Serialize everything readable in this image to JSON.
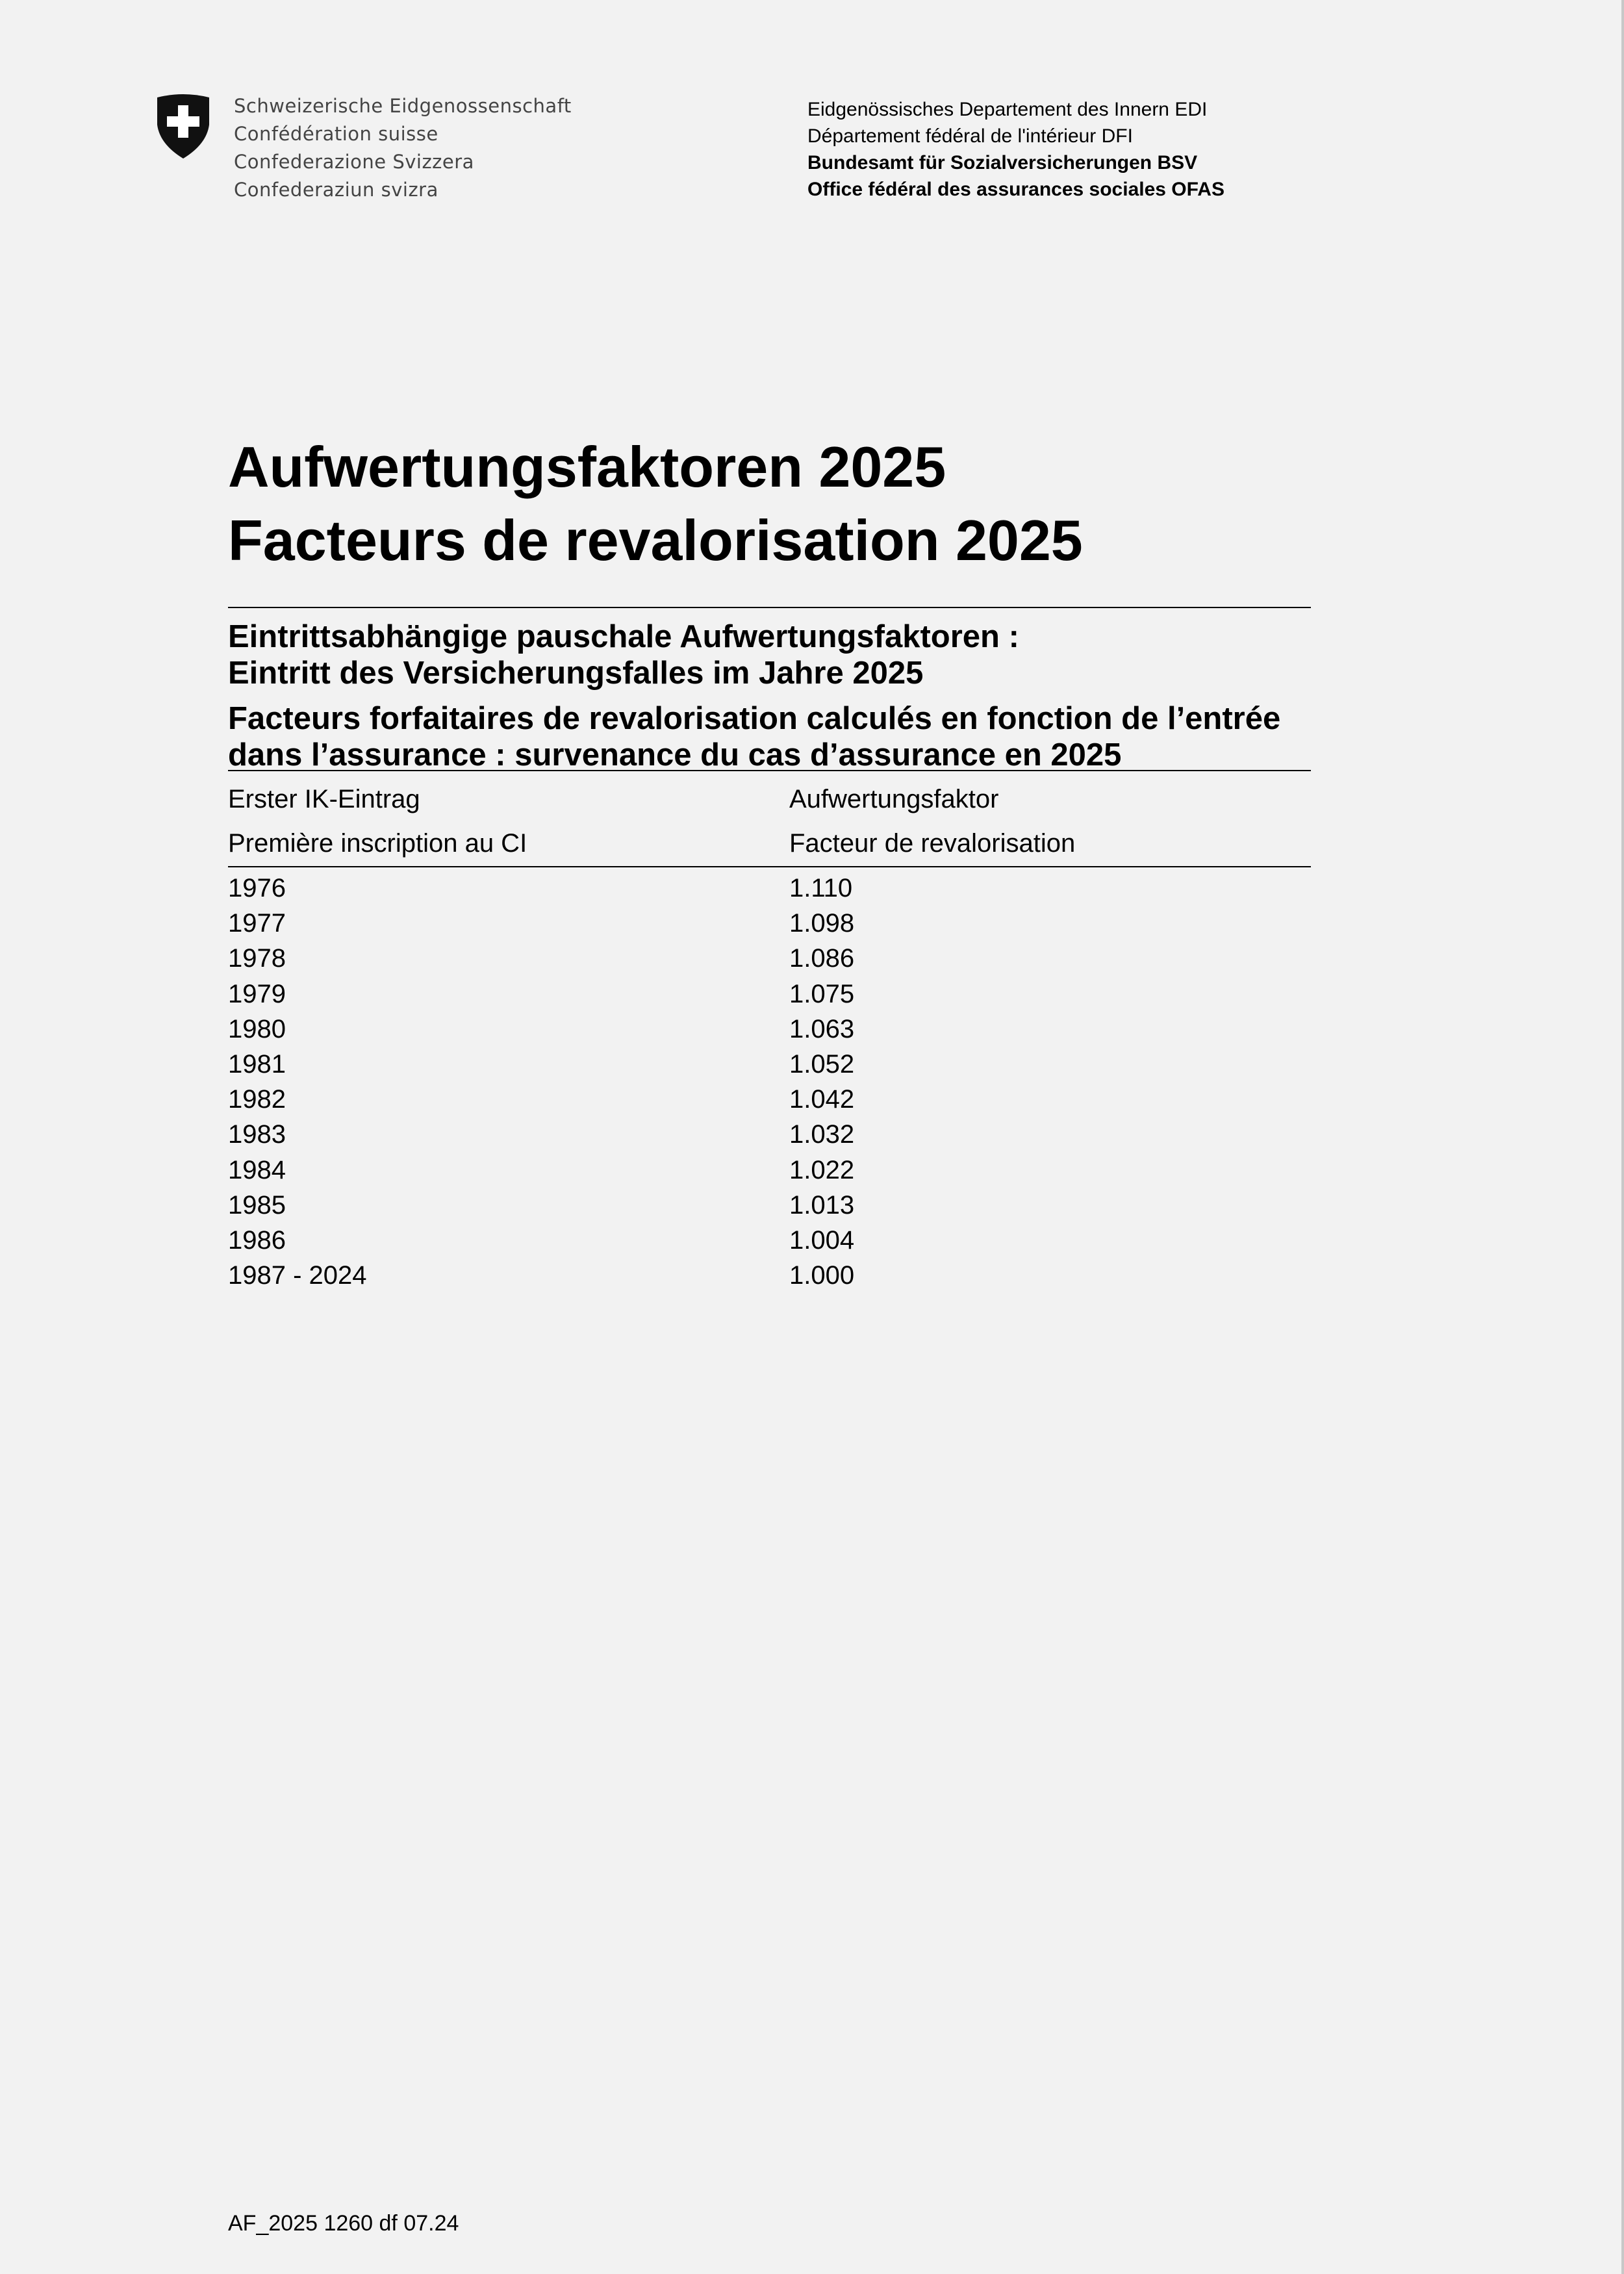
{
  "header": {
    "federation": [
      "Schweizerische Eidgenossenschaft",
      "Confédération suisse",
      "Confederazione Svizzera",
      "Confederaziun svizra"
    ],
    "department": [
      "Eidgenössisches Departement des Innern EDI",
      "Département fédéral de l'intérieur DFI"
    ],
    "office": [
      "Bundesamt für Sozialversicherungen BSV",
      "Office fédéral des assurances sociales OFAS"
    ],
    "logo_icon": "swiss-cross-shield-icon"
  },
  "title": [
    "Aufwertungsfaktoren 2025",
    "Facteurs de revalorisation 2025"
  ],
  "subtitle_de": [
    "Eintrittsabhängige pauschale Aufwertungsfaktoren :",
    "Eintritt des Versicherungsfalles im Jahre 2025"
  ],
  "subtitle_fr": [
    "Facteurs forfaitaires de revalorisation calculés en fonction de l’entrée",
    "dans l’assurance : survenance du cas d’assurance en 2025"
  ],
  "table": {
    "col1": [
      "Erster IK-Eintrag",
      "Première inscription au CI"
    ],
    "col2": [
      "Aufwertungsfaktor",
      "Facteur de revalorisation"
    ],
    "rows": [
      [
        "1976",
        "1.110"
      ],
      [
        "1977",
        "1.098"
      ],
      [
        "1978",
        "1.086"
      ],
      [
        "1979",
        "1.075"
      ],
      [
        "1980",
        "1.063"
      ],
      [
        "1981",
        "1.052"
      ],
      [
        "1982",
        "1.042"
      ],
      [
        "1983",
        "1.032"
      ],
      [
        "1984",
        "1.022"
      ],
      [
        "1985",
        "1.013"
      ],
      [
        "1986",
        "1.004"
      ],
      [
        "1987 - 2024",
        "1.000"
      ]
    ]
  },
  "footer": "AF_2025 1260 df 07.24"
}
